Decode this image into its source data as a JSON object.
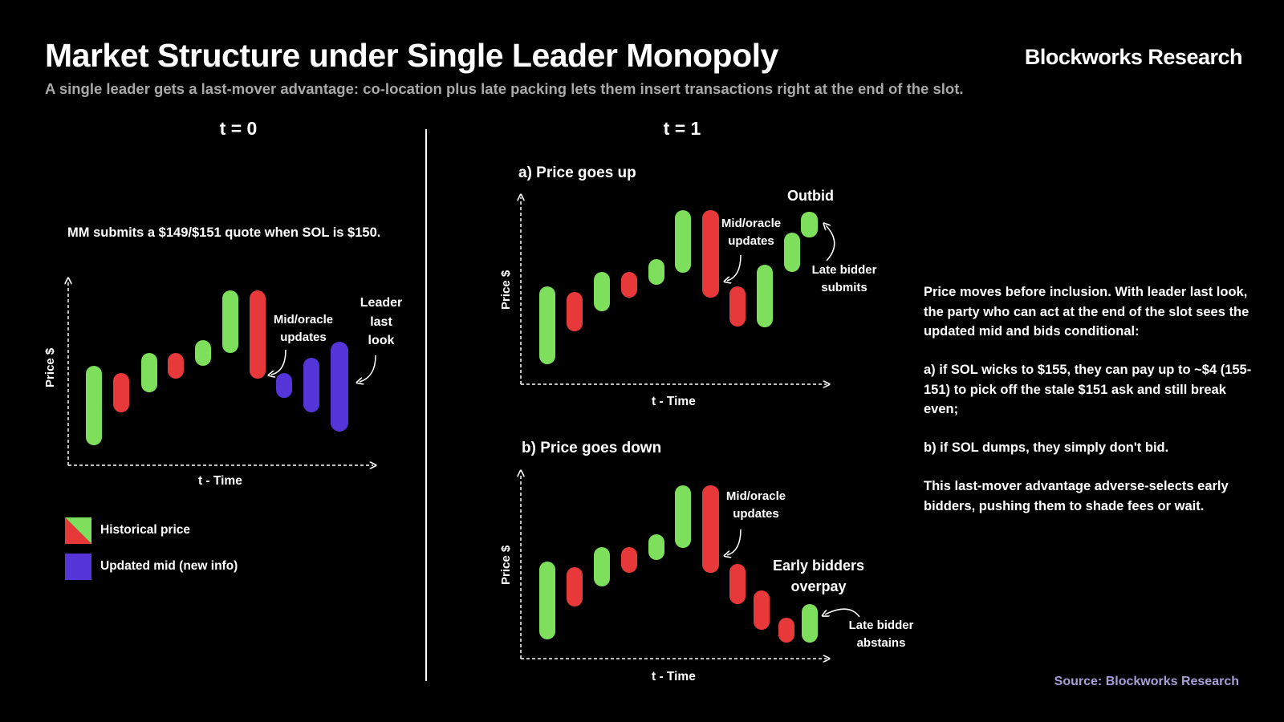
{
  "header": {
    "title": "Market Structure under Single Leader Monopoly",
    "brand": "Blockworks Research",
    "subtitle": "A single leader gets a last-mover advantage: co-location plus late packing lets them insert transactions right at the end of the slot."
  },
  "colors": {
    "green": "#7ddf5b",
    "red": "#e8393a",
    "purple": "#5534d8",
    "source": "#a99fd8"
  },
  "left_panel": {
    "heading": "t = 0",
    "quote_text": "MM submits a $149/$151 quote when SOL is $150.",
    "y_label": "Price $",
    "x_label": "t - Time",
    "annotation_mid": [
      "Mid/oracle",
      "updates"
    ],
    "annotation_leader": [
      "Leader",
      "last",
      "look"
    ],
    "legend": [
      {
        "label": "Historical price",
        "icon": "green-red-split-swatch"
      },
      {
        "label": "Updated mid (new info)",
        "icon": "purple-swatch"
      }
    ]
  },
  "right_panel": {
    "heading": "t = 1",
    "panel_a": {
      "label": "a) Price goes up",
      "y_label": "Price $",
      "x_label": "t - Time",
      "annotation_mid": [
        "Mid/oracle",
        "updates"
      ],
      "annotation_outbid": "Outbid",
      "annotation_late": [
        "Late bidder",
        "submits"
      ]
    },
    "panel_b": {
      "label": "b) Price goes down",
      "y_label": "Price $",
      "x_label": "t - Time",
      "annotation_mid": [
        "Mid/oracle",
        "updates"
      ],
      "annotation_early": [
        "Early bidders",
        "overpay"
      ],
      "annotation_late": [
        "Late bidder",
        "abstains"
      ]
    }
  },
  "explanation": {
    "p1": "Price moves before inclusion. With leader last look, the party who can act at the end of the slot sees the updated mid and bids conditional:",
    "p2": "a) if SOL wicks to $155, they can pay up to ~$4 (155-151) to pick off the stale $151 ask and still break even;",
    "p3": "b) if SOL dumps, they simply don't bid.",
    "p4": "This last-mover advantage adverse-selects early bidders, pushing them to shade fees or wait."
  },
  "source": "Source: Blockworks Research"
}
